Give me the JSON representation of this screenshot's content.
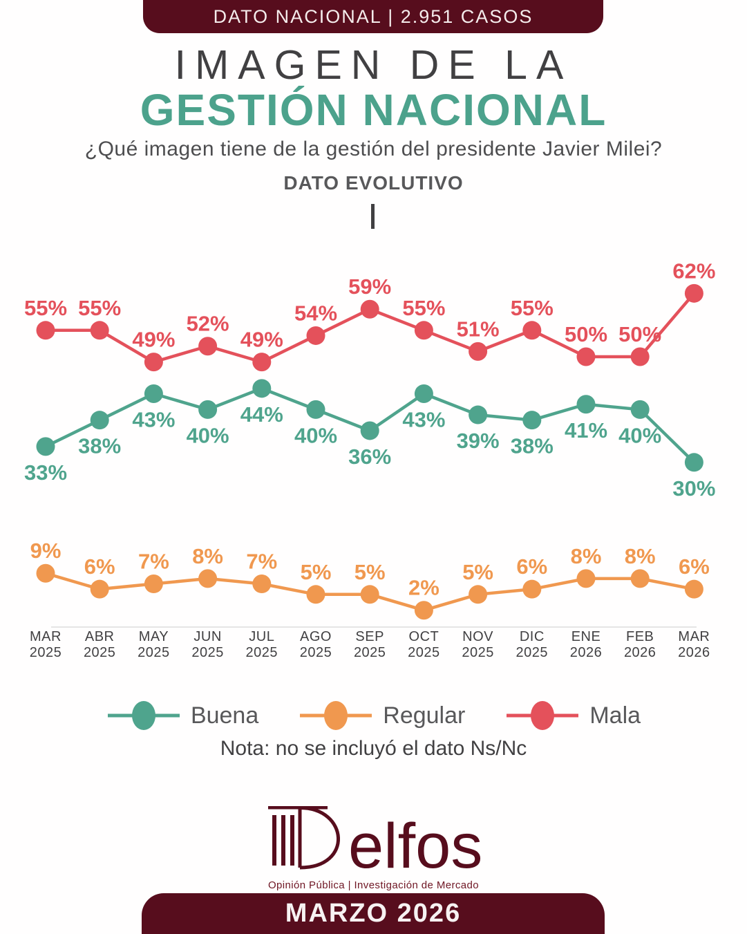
{
  "header": {
    "banner": "DATO NACIONAL | 2.951 CASOS",
    "title_line1": "IMAGEN DE LA",
    "title_line2": "GESTIÓN NACIONAL",
    "subtitle": "¿Qué imagen tiene de la gestión del presidente Javier Milei?",
    "section_label": "DATO EVOLUTIVO"
  },
  "chart_data": {
    "type": "line",
    "title": "Imagen de la gestión nacional - dato evolutivo",
    "categories": [
      {
        "month": "MAR",
        "year": "2025"
      },
      {
        "month": "ABR",
        "year": "2025"
      },
      {
        "month": "MAY",
        "year": "2025"
      },
      {
        "month": "JUN",
        "year": "2025"
      },
      {
        "month": "JUL",
        "year": "2025"
      },
      {
        "month": "AGO",
        "year": "2025"
      },
      {
        "month": "SEP",
        "year": "2025"
      },
      {
        "month": "OCT",
        "year": "2025"
      },
      {
        "month": "NOV",
        "year": "2025"
      },
      {
        "month": "DIC",
        "year": "2025"
      },
      {
        "month": "ENE",
        "year": "2026"
      },
      {
        "month": "FEB",
        "year": "2026"
      },
      {
        "month": "MAR",
        "year": "2026"
      }
    ],
    "series": [
      {
        "name": "Mala",
        "color": "#E4515B",
        "label_position": "above",
        "values": [
          55,
          55,
          49,
          52,
          49,
          54,
          59,
          55,
          51,
          55,
          50,
          50,
          62
        ]
      },
      {
        "name": "Buena",
        "color": "#4FA48D",
        "label_position": "below",
        "values": [
          33,
          38,
          43,
          40,
          44,
          40,
          36,
          43,
          39,
          38,
          41,
          40,
          30
        ]
      },
      {
        "name": "Regular",
        "color": "#F0984F",
        "label_position": "above",
        "values": [
          9,
          6,
          7,
          8,
          7,
          5,
          5,
          2,
          5,
          6,
          8,
          8,
          6
        ]
      }
    ],
    "value_suffix": "%",
    "ylim": [
      0,
      70
    ],
    "grid": false,
    "legend_position": "bottom"
  },
  "legend": [
    {
      "label": "Buena",
      "color": "#4FA48D"
    },
    {
      "label": "Regular",
      "color": "#F0984F"
    },
    {
      "label": "Mala",
      "color": "#E4515B"
    }
  ],
  "note": "Nota: no se incluyó el dato Ns/Nc",
  "footer": {
    "logo_text": "Delfos",
    "logo_subtext": "Opinión Pública | Investigación de Mercado",
    "banner": "MARZO 2026"
  },
  "colors": {
    "banner_maroon": "#570D1D",
    "title_teal": "#4CA28C",
    "text_gray": "#414042",
    "axis_line": "#E5E5E5"
  }
}
